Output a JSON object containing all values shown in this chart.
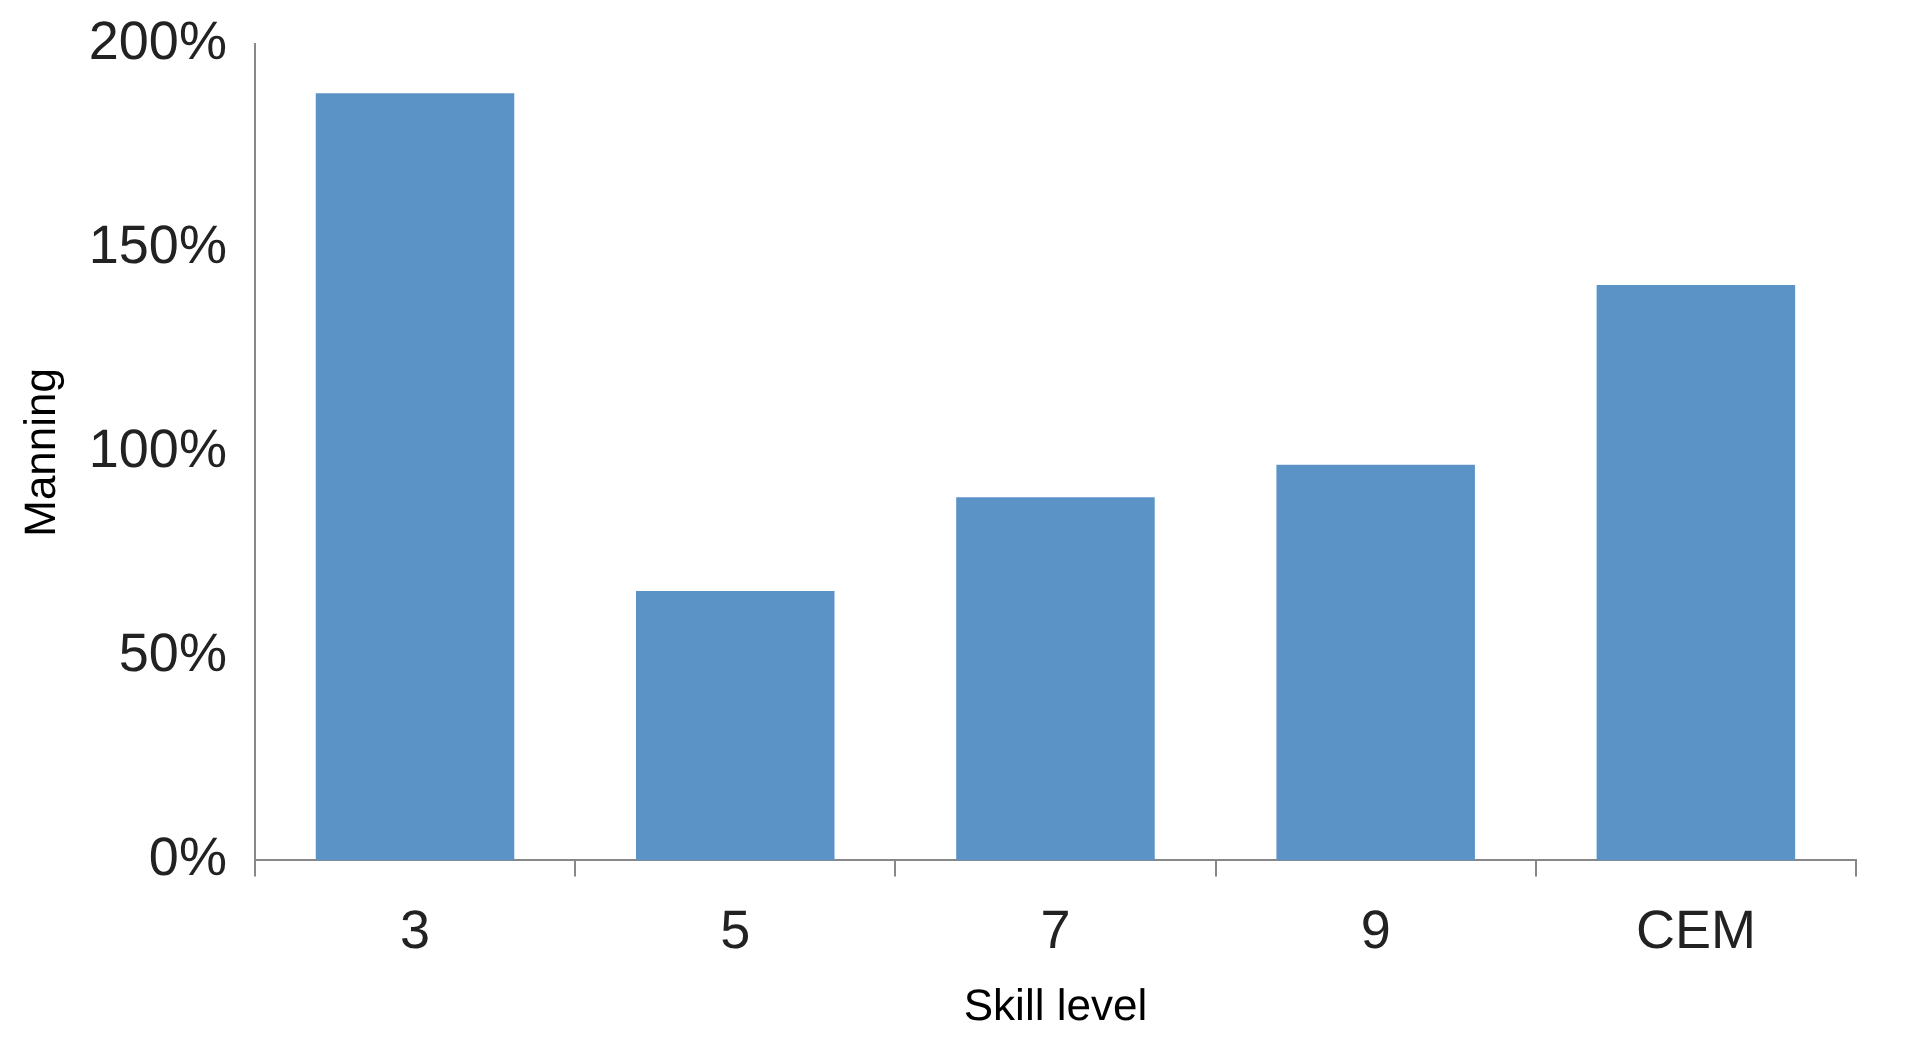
{
  "chart_data": {
    "type": "bar",
    "xlabel": "Skill level",
    "ylabel": "Manning",
    "categories": [
      "3",
      "5",
      "7",
      "9",
      "CEM"
    ],
    "values": [
      188,
      66,
      89,
      97,
      141
    ],
    "color": "#5b93c7",
    "ylim": [
      0,
      200
    ],
    "yticks": [
      {
        "value": 0,
        "label": "0%"
      },
      {
        "value": 50,
        "label": "50%"
      },
      {
        "value": 100,
        "label": "100%"
      },
      {
        "value": 150,
        "label": "150%"
      },
      {
        "value": 200,
        "label": "200%"
      }
    ],
    "grid": false,
    "legend": false
  }
}
